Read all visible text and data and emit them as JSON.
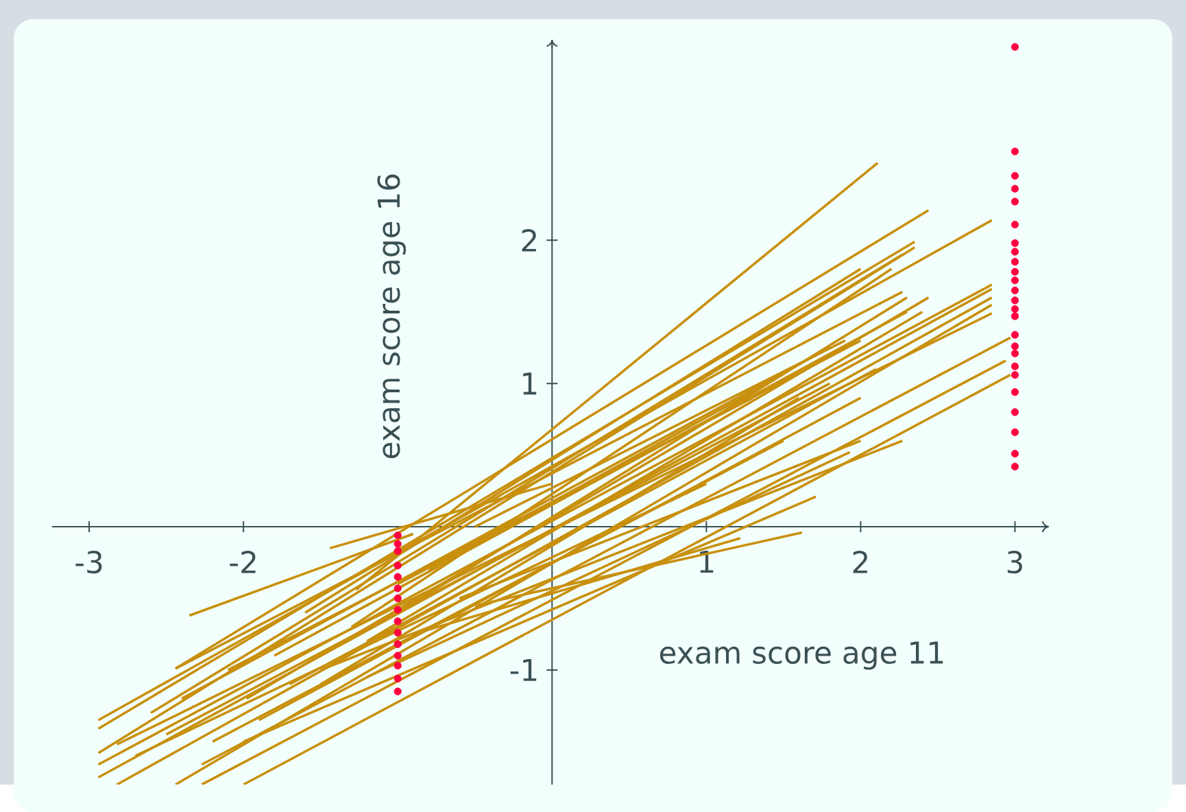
{
  "chart_data": {
    "type": "line",
    "xlabel": "exam score age 11",
    "ylabel": "exam score age 16",
    "xlim": [
      -3.24,
      3.22
    ],
    "ylim": [
      -1.8,
      3.4
    ],
    "xticks": [
      -3,
      -2,
      1,
      2,
      3
    ],
    "yticks": [
      -1,
      1,
      2
    ],
    "series": [
      {
        "color": "#c8900e",
        "x": [
          -1.27,
          2.11
        ],
        "values": [
          -0.44,
          2.54
        ]
      },
      {
        "color": "#c8900e",
        "x": [
          -2.44,
          2.44
        ],
        "values": [
          -0.99,
          2.21
        ]
      },
      {
        "color": "#c8900e",
        "x": [
          -2.35,
          -0.9
        ],
        "values": [
          -0.62,
          -0.05
        ]
      },
      {
        "color": "#c8900e",
        "x": [
          -2.94,
          2.85
        ],
        "values": [
          -1.35,
          2.14
        ]
      },
      {
        "color": "#c8900e",
        "x": [
          -2.94,
          2.35
        ],
        "values": [
          -1.41,
          1.99
        ]
      },
      {
        "color": "#c8900e",
        "x": [
          -2.94,
          2.35
        ],
        "values": [
          -1.58,
          1.95
        ]
      },
      {
        "color": "#c8900e",
        "x": [
          -2.94,
          2.85
        ],
        "values": [
          -1.66,
          1.69
        ]
      },
      {
        "color": "#c8900e",
        "x": [
          -2.94,
          2.85
        ],
        "values": [
          -1.75,
          1.66
        ]
      },
      {
        "color": "#c8900e",
        "x": [
          -2.82,
          2.85
        ],
        "values": [
          -1.8,
          1.6
        ]
      },
      {
        "color": "#c8900e",
        "x": [
          -2.44,
          2.85
        ],
        "values": [
          -1.8,
          1.55
        ]
      },
      {
        "color": "#c8900e",
        "x": [
          -2.82,
          2.85
        ],
        "values": [
          -1.52,
          1.49
        ]
      },
      {
        "color": "#c8900e",
        "x": [
          -2.27,
          2.97
        ],
        "values": [
          -1.66,
          1.32
        ]
      },
      {
        "color": "#c8900e",
        "x": [
          -2.27,
          2.94
        ],
        "values": [
          -1.8,
          1.16
        ]
      },
      {
        "color": "#c8900e",
        "x": [
          -2.0,
          2.97
        ],
        "values": [
          -1.8,
          1.06
        ]
      },
      {
        "color": "#c8900e",
        "x": [
          -2.44,
          2.27
        ],
        "values": [
          -0.99,
          1.64
        ]
      },
      {
        "color": "#c8900e",
        "x": [
          -1.98,
          2.44
        ],
        "values": [
          -1.2,
          1.6
        ]
      },
      {
        "color": "#c8900e",
        "x": [
          -2.6,
          2.27
        ],
        "values": [
          -1.3,
          1.9
        ]
      },
      {
        "color": "#c8900e",
        "x": [
          -1.5,
          2.27
        ],
        "values": [
          -1.0,
          0.6
        ]
      },
      {
        "color": "#c8900e",
        "x": [
          -1.2,
          1.93
        ],
        "values": [
          -1.05,
          0.52
        ]
      },
      {
        "color": "#c8900e",
        "x": [
          -0.5,
          1.62
        ],
        "values": [
          -0.55,
          -0.04
        ]
      },
      {
        "color": "#c8900e",
        "x": [
          -0.9,
          1.22
        ],
        "values": [
          -0.75,
          -0.08
        ]
      },
      {
        "color": "#c8900e",
        "x": [
          -1.44,
          0.0
        ],
        "values": [
          -0.15,
          0.3
        ]
      },
      {
        "color": "#c8900e",
        "x": [
          -1.6,
          2.0
        ],
        "values": [
          -0.6,
          1.8
        ]
      },
      {
        "color": "#c8900e",
        "x": [
          -1.0,
          2.3
        ],
        "values": [
          -0.6,
          1.6
        ]
      },
      {
        "color": "#c8900e",
        "x": [
          -1.8,
          2.3
        ],
        "values": [
          -0.9,
          1.5
        ]
      },
      {
        "color": "#c8900e",
        "x": [
          -2.0,
          1.71
        ],
        "values": [
          -1.5,
          0.21
        ]
      },
      {
        "color": "#c8900e",
        "x": [
          -1.5,
          1.6
        ],
        "values": [
          -1.1,
          0.9
        ]
      },
      {
        "color": "#c8900e",
        "x": [
          -2.2,
          1.5
        ],
        "values": [
          -1.5,
          0.6
        ]
      },
      {
        "color": "#c8900e",
        "x": [
          -0.5,
          1.9
        ],
        "values": [
          0.0,
          1.3
        ]
      },
      {
        "color": "#c8900e",
        "x": [
          -1.0,
          2.0
        ],
        "values": [
          -0.4,
          1.3
        ]
      },
      {
        "color": "#c8900e",
        "x": [
          -1.7,
          2.1
        ],
        "values": [
          -1.1,
          1.1
        ]
      },
      {
        "color": "#c8900e",
        "x": [
          -2.5,
          1.8
        ],
        "values": [
          -1.45,
          1.0
        ]
      },
      {
        "color": "#c8900e",
        "x": [
          -1.2,
          2.4
        ],
        "values": [
          -0.8,
          1.5
        ]
      },
      {
        "color": "#c8900e",
        "x": [
          -0.8,
          1.4
        ],
        "values": [
          -0.3,
          1.0
        ]
      },
      {
        "color": "#c8900e",
        "x": [
          -2.1,
          1.3
        ],
        "values": [
          -1.0,
          0.9
        ]
      },
      {
        "color": "#c8900e",
        "x": [
          -1.3,
          2.2
        ],
        "values": [
          -0.7,
          1.8
        ]
      },
      {
        "color": "#c8900e",
        "x": [
          -0.6,
          2.0
        ],
        "values": [
          -0.5,
          0.6
        ]
      },
      {
        "color": "#c8900e",
        "x": [
          -2.7,
          1.0
        ],
        "values": [
          -1.6,
          0.3
        ]
      },
      {
        "color": "#c8900e",
        "x": [
          -1.9,
          2.0
        ],
        "values": [
          -1.35,
          0.9
        ]
      },
      {
        "color": "#c8900e",
        "x": [
          -2.4,
          1.8
        ],
        "values": [
          -1.2,
          1.25
        ]
      },
      {
        "type": "scatter",
        "color": "#ff0040",
        "x": [
          -1,
          -1,
          -1,
          -1,
          -1,
          -1,
          -1,
          -1,
          -1,
          -1,
          -1,
          -1,
          -1,
          -1,
          -1
        ],
        "values": [
          -0.06,
          -0.12,
          -0.17,
          -0.27,
          -0.35,
          -0.43,
          -0.5,
          -0.58,
          -0.66,
          -0.74,
          -0.82,
          -0.9,
          -0.97,
          -1.06,
          -1.15
        ]
      },
      {
        "type": "scatter",
        "color": "#ff0040",
        "x": [
          3,
          3,
          3,
          3,
          3,
          3,
          3,
          3,
          3,
          3,
          3,
          3,
          3,
          3,
          3,
          3,
          3,
          3,
          3,
          3,
          3,
          3,
          3,
          3,
          3
        ],
        "values": [
          3.35,
          2.62,
          2.45,
          2.36,
          2.27,
          2.11,
          1.98,
          1.92,
          1.85,
          1.78,
          1.72,
          1.65,
          1.58,
          1.52,
          1.47,
          1.34,
          1.26,
          1.21,
          1.12,
          1.06,
          0.94,
          0.8,
          0.66,
          0.51,
          0.42
        ]
      }
    ]
  }
}
